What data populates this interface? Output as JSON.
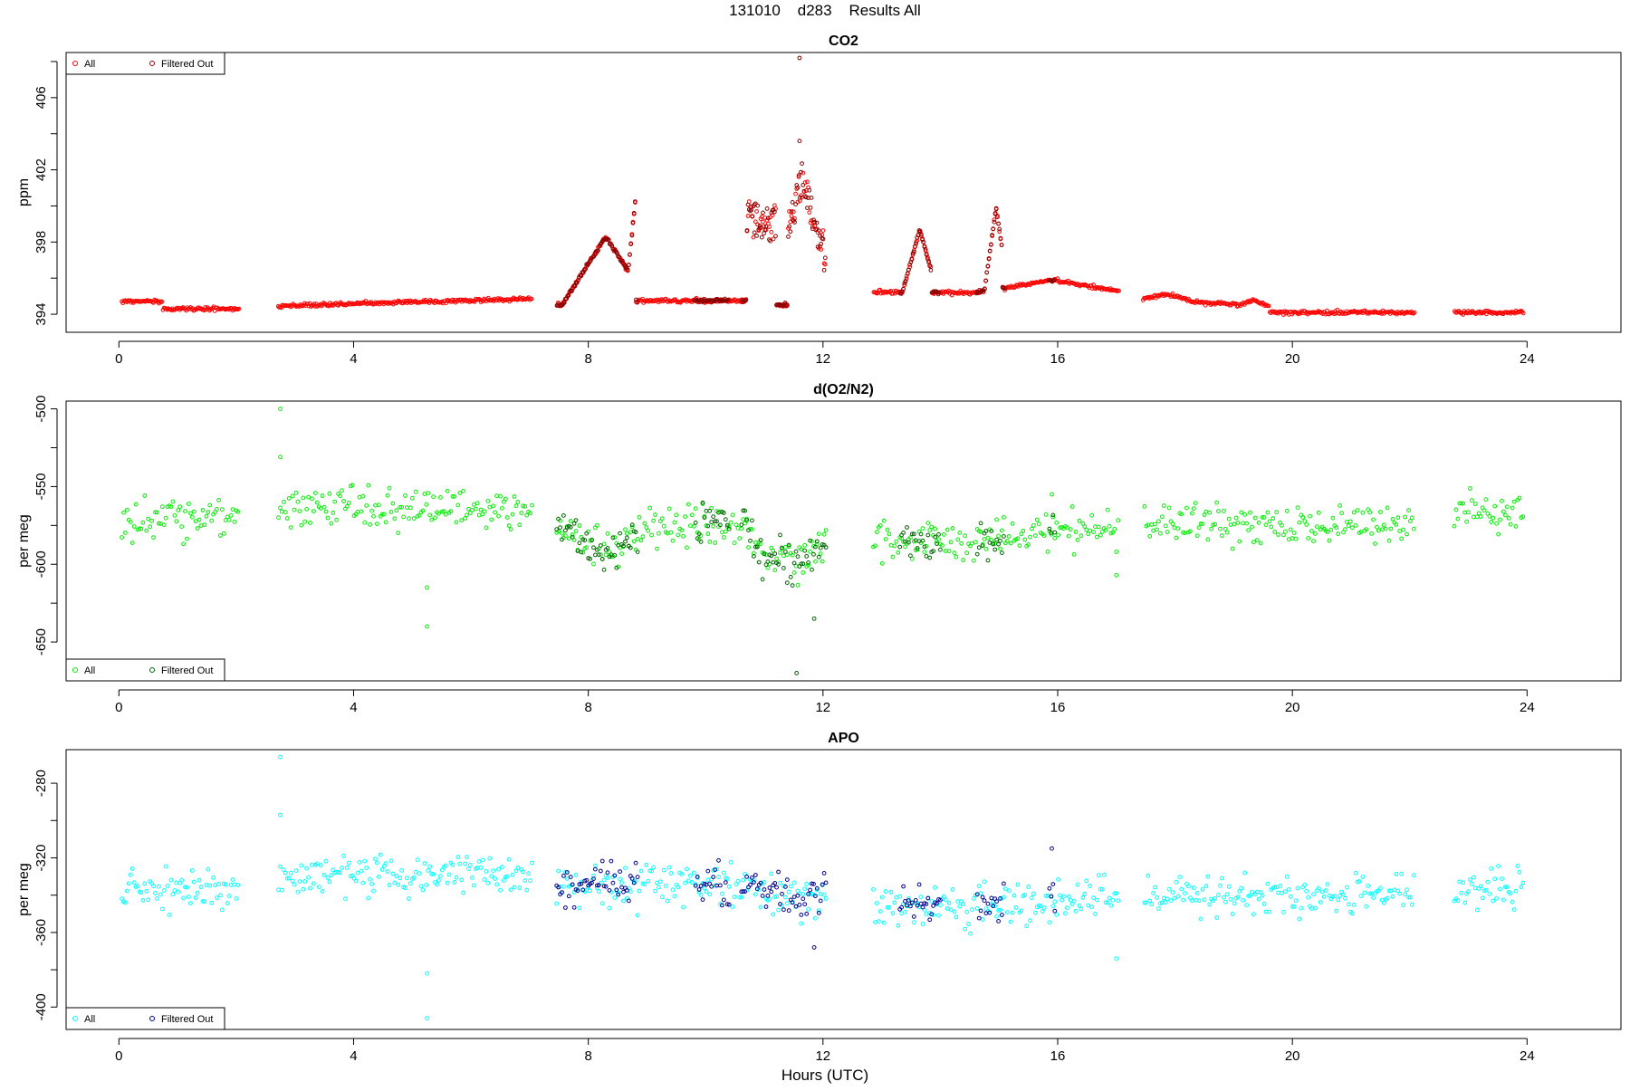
{
  "page_title": "131010    d283    Results All",
  "x_axis_label": "Hours (UTC)",
  "colors": {
    "co2_all": "#ff0000",
    "co2_filtered": "#8b0000",
    "o2_all": "#00ee00",
    "o2_filtered": "#006400",
    "apo_all": "#00ffff",
    "apo_filtered": "#00008b"
  },
  "chart_data": [
    {
      "type": "scatter",
      "title": "CO2",
      "ylabel": "ppm",
      "xlabel": "",
      "xlim": [
        -0.9,
        25.6
      ],
      "ylim": [
        393.0,
        408.5
      ],
      "x_ticks": [
        0,
        4,
        8,
        12,
        16,
        20,
        24
      ],
      "x_tick_labels": [
        "0",
        "4",
        "8",
        "12",
        "16",
        "20",
        "24"
      ],
      "y_ticks": [
        394,
        396,
        398,
        400,
        402,
        404,
        406,
        408
      ],
      "y_tick_labels": [
        "394",
        "",
        "398",
        "",
        "402",
        "",
        "406",
        ""
      ],
      "legend": {
        "position": "top-left",
        "entries": [
          "All",
          "Filtered Out"
        ]
      },
      "series": [
        {
          "name": "All",
          "color_key": "co2_all",
          "profile": "co2_all"
        },
        {
          "name": "Filtered Out",
          "color_key": "co2_filtered",
          "profile": "co2_filtered"
        }
      ]
    },
    {
      "type": "scatter",
      "title": "d(O2/N2)",
      "ylabel": "per meg",
      "xlabel": "",
      "xlim": [
        -0.9,
        25.6
      ],
      "ylim": [
        -675,
        -495
      ],
      "x_ticks": [
        0,
        4,
        8,
        12,
        16,
        20,
        24
      ],
      "x_tick_labels": [
        "0",
        "4",
        "8",
        "12",
        "16",
        "20",
        "24"
      ],
      "y_ticks": [
        -500,
        -525,
        -550,
        -575,
        -600,
        -625,
        -650
      ],
      "y_tick_labels": [
        "-500",
        "",
        "-550",
        "",
        "-600",
        "",
        "-650"
      ],
      "legend": {
        "position": "bottom-left",
        "entries": [
          "All",
          "Filtered Out"
        ]
      },
      "series": [
        {
          "name": "All",
          "color_key": "o2_all",
          "profile": "o2_all"
        },
        {
          "name": "Filtered Out",
          "color_key": "o2_filtered",
          "profile": "o2_filtered"
        }
      ]
    },
    {
      "type": "scatter",
      "title": "APO",
      "ylabel": "per meg",
      "xlabel": "Hours (UTC)",
      "xlim": [
        -0.9,
        25.6
      ],
      "ylim": [
        -412,
        -262
      ],
      "x_ticks": [
        0,
        4,
        8,
        12,
        16,
        20,
        24
      ],
      "x_tick_labels": [
        "0",
        "4",
        "8",
        "12",
        "16",
        "20",
        "24"
      ],
      "y_ticks": [
        -280,
        -300,
        -320,
        -340,
        -360,
        -380,
        -400
      ],
      "y_tick_labels": [
        "-280",
        "",
        "-320",
        "",
        "-360",
        "",
        "-400"
      ],
      "legend": {
        "position": "bottom-left",
        "entries": [
          "All",
          "Filtered Out"
        ]
      },
      "series": [
        {
          "name": "All",
          "color_key": "apo_all",
          "profile": "apo_all"
        },
        {
          "name": "Filtered Out",
          "color_key": "apo_filtered",
          "profile": "apo_filtered"
        }
      ]
    }
  ]
}
